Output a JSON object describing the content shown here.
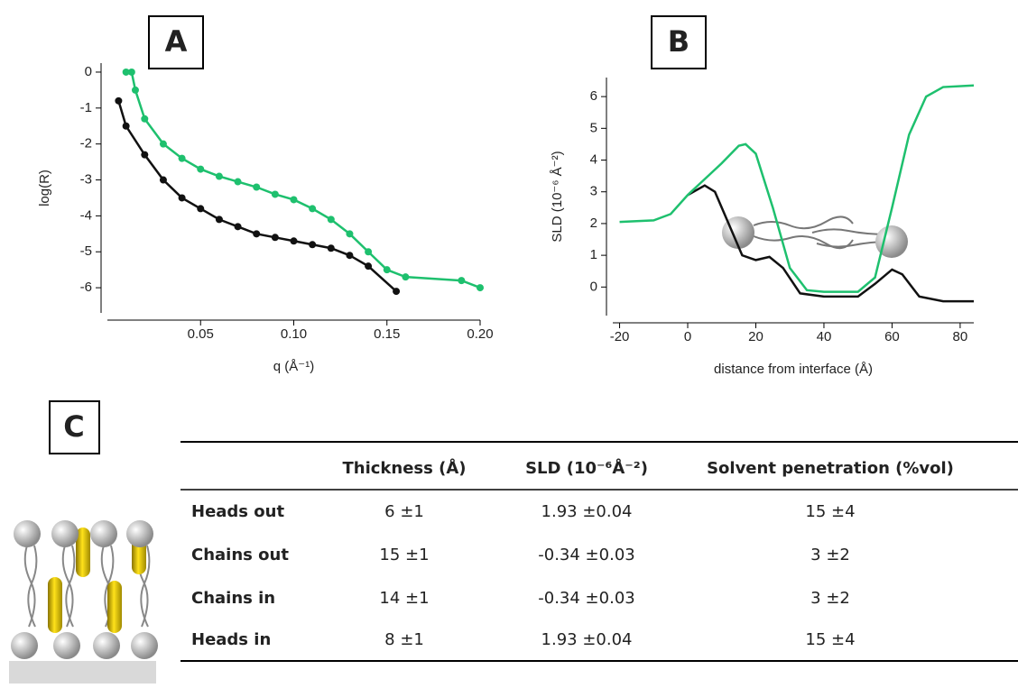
{
  "chart_data": [
    {
      "type": "line",
      "panel_label": "A",
      "x_label": "q (Å⁻¹)",
      "y_label": "log(R)",
      "xlim": [
        0,
        0.2
      ],
      "ylim": [
        -6.7,
        0.25
      ],
      "xticks": [
        0.05,
        {
          "value": 0.1,
          "label": "0.10"
        },
        0.15,
        {
          "value": 0.2,
          "label": "0.20"
        }
      ],
      "yticks": [
        0,
        -1,
        -2,
        -3,
        -4,
        -5,
        -6
      ],
      "series": [
        {
          "color": "#1ec06e",
          "markers": true,
          "x": [
            0.01,
            0.013,
            0.015,
            0.02,
            0.03,
            0.04,
            0.05,
            0.06,
            0.07,
            0.08,
            0.09,
            0.1,
            0.11,
            0.12,
            0.13,
            0.14,
            0.15,
            0.16,
            0.19,
            0.2
          ],
          "values": [
            0,
            0,
            -0.5,
            -1.3,
            -2.0,
            -2.4,
            -2.7,
            -2.9,
            -3.05,
            -3.2,
            -3.4,
            -3.55,
            -3.8,
            -4.1,
            -4.5,
            -5.0,
            -5.5,
            -5.7,
            -5.8,
            -6.0
          ]
        },
        {
          "color": "#111111",
          "markers": true,
          "x": [
            0.006,
            0.01,
            0.02,
            0.03,
            0.04,
            0.05,
            0.06,
            0.07,
            0.08,
            0.09,
            0.1,
            0.11,
            0.12,
            0.13,
            0.14,
            0.155
          ],
          "values": [
            -0.8,
            -1.5,
            -2.3,
            -3.0,
            -3.5,
            -3.8,
            -4.1,
            -4.3,
            -4.5,
            -4.6,
            -4.7,
            -4.8,
            -4.9,
            -5.1,
            -5.4,
            -6.1
          ]
        }
      ]
    },
    {
      "type": "line",
      "panel_label": "B",
      "x_label": "distance from interface (Å)",
      "y_label": "SLD (10⁻⁶ Å⁻²)",
      "xlim": [
        -22,
        84
      ],
      "ylim": [
        -0.9,
        6.6
      ],
      "xticks": [
        -20,
        0,
        20,
        40,
        60,
        80
      ],
      "yticks": [
        0,
        1,
        2,
        3,
        4,
        5,
        6
      ],
      "series": [
        {
          "color": "#111111",
          "markers": false,
          "x": [
            0,
            5,
            8,
            12,
            16,
            20,
            24,
            28,
            33,
            40,
            50,
            55,
            60,
            63,
            68,
            75,
            84
          ],
          "values": [
            2.9,
            3.2,
            3.0,
            2.0,
            1.0,
            0.85,
            0.95,
            0.6,
            -0.2,
            -0.3,
            -0.3,
            0.1,
            0.55,
            0.4,
            -0.3,
            -0.45,
            -0.45
          ]
        },
        {
          "color": "#1ec06e",
          "markers": false,
          "x": [
            -20,
            -10,
            -5,
            0,
            5,
            10,
            15,
            17,
            20,
            25,
            30,
            35,
            40,
            50,
            55,
            60,
            65,
            70,
            75,
            84
          ],
          "values": [
            2.05,
            2.1,
            2.3,
            2.9,
            3.4,
            3.9,
            4.45,
            4.5,
            4.2,
            2.5,
            0.6,
            -0.1,
            -0.15,
            -0.15,
            0.3,
            2.5,
            4.8,
            6.0,
            6.3,
            6.35
          ]
        }
      ]
    }
  ],
  "table": {
    "panel_label": "C",
    "columns": [
      "Thickness (Å)",
      "SLD (10⁻⁶Å⁻²)",
      "Solvent penetration (%vol)"
    ],
    "rows": [
      {
        "label": "Heads out",
        "cells": [
          "6 ±1",
          "1.93 ±0.04",
          "15 ±4"
        ]
      },
      {
        "label": "Chains out",
        "cells": [
          "15 ±1",
          "-0.34 ±0.03",
          "3 ±2"
        ]
      },
      {
        "label": "Chains in",
        "cells": [
          "14 ±1",
          "-0.34 ±0.03",
          "3 ±2"
        ]
      },
      {
        "label": "Heads in",
        "cells": [
          "8 ±1",
          "1.93 ±0.04",
          "15 ±4"
        ]
      }
    ]
  }
}
